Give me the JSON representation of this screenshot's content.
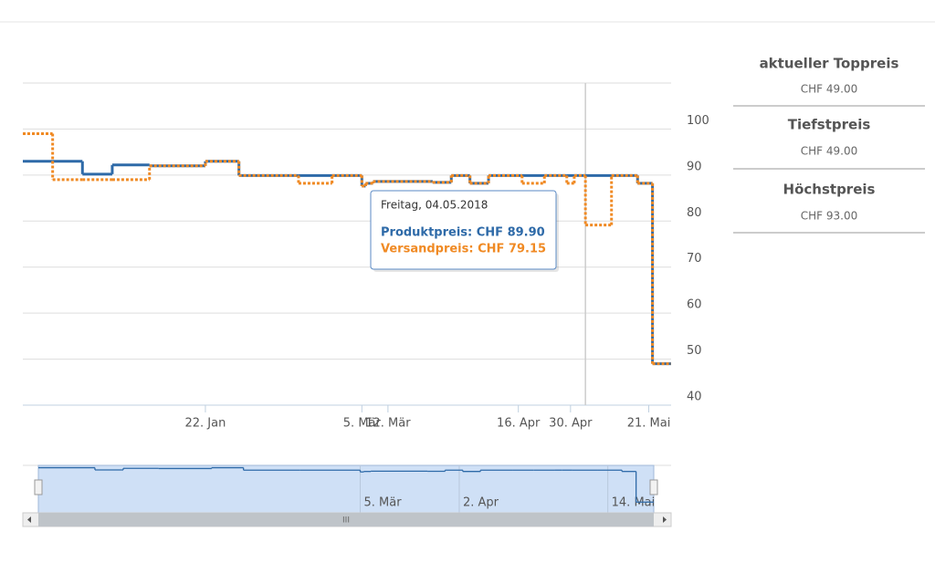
{
  "chart_data": {
    "type": "line",
    "step": true,
    "x": [
      "2017-12-04",
      "2017-12-12",
      "2017-12-20",
      "2017-12-28",
      "2018-01-07",
      "2018-01-22",
      "2018-01-31",
      "2018-02-16",
      "2018-02-25",
      "2018-03-05",
      "2018-03-06",
      "2018-03-08",
      "2018-03-24",
      "2018-03-29",
      "2018-04-03",
      "2018-04-08",
      "2018-04-17",
      "2018-04-23",
      "2018-04-29",
      "2018-05-01",
      "2018-05-04",
      "2018-05-11",
      "2018-05-18",
      "2018-05-22"
    ],
    "xlim": [
      "2017-12-04",
      "2018-05-27"
    ],
    "xticks": [
      {
        "value": "2018-01-22",
        "label": "22. Jan"
      },
      {
        "value": "2018-03-05",
        "label": "5. Mär"
      },
      {
        "value": "2018-03-12",
        "label": "12. Mär"
      },
      {
        "value": "2018-04-16",
        "label": "16. Apr"
      },
      {
        "value": "2018-04-30",
        "label": "30. Apr"
      },
      {
        "value": "2018-05-21",
        "label": "21. Mai"
      }
    ],
    "ylim": [
      40,
      110
    ],
    "yticks": [
      40,
      50,
      60,
      70,
      80,
      90,
      100
    ],
    "grid": true,
    "series": [
      {
        "name": "Produktpreis",
        "color": "#2e6aa8",
        "dashed": false,
        "values": [
          93,
          93,
          90.2,
          92.2,
          92,
          93,
          89.9,
          89.9,
          89.9,
          87.6,
          88.2,
          88.6,
          88.4,
          89.9,
          88.2,
          89.9,
          89.9,
          89.9,
          89.9,
          89.9,
          89.9,
          89.9,
          88.2,
          49
        ]
      },
      {
        "name": "Versandpreis",
        "color": "#f08a24",
        "dashed": true,
        "values": [
          99,
          89,
          89,
          89,
          92,
          93,
          89.9,
          88.2,
          89.9,
          87.6,
          88.2,
          88.6,
          88.4,
          89.9,
          88.2,
          89.9,
          88.2,
          89.9,
          88.2,
          89.9,
          79.15,
          89.9,
          88.2,
          49
        ]
      }
    ],
    "tooltip": {
      "title": "Freitag, 04.05.2018",
      "lines": [
        "Produktpreis: CHF 89.90",
        "Versandpreis: CHF 79.15"
      ]
    }
  },
  "navigator": {
    "xticks": [
      {
        "value": "2018-03-05",
        "label": "5. Mär"
      },
      {
        "value": "2018-04-02",
        "label": "2. Apr"
      },
      {
        "value": "2018-05-14",
        "label": "14. Mai"
      }
    ],
    "scrollbar_label": "III"
  },
  "sidebar": [
    {
      "title": "aktueller Toppreis",
      "value": "CHF 49.00"
    },
    {
      "title": "Tiefstpreis",
      "value": "CHF 49.00"
    },
    {
      "title": "Höchstpreis",
      "value": "CHF 93.00"
    }
  ]
}
